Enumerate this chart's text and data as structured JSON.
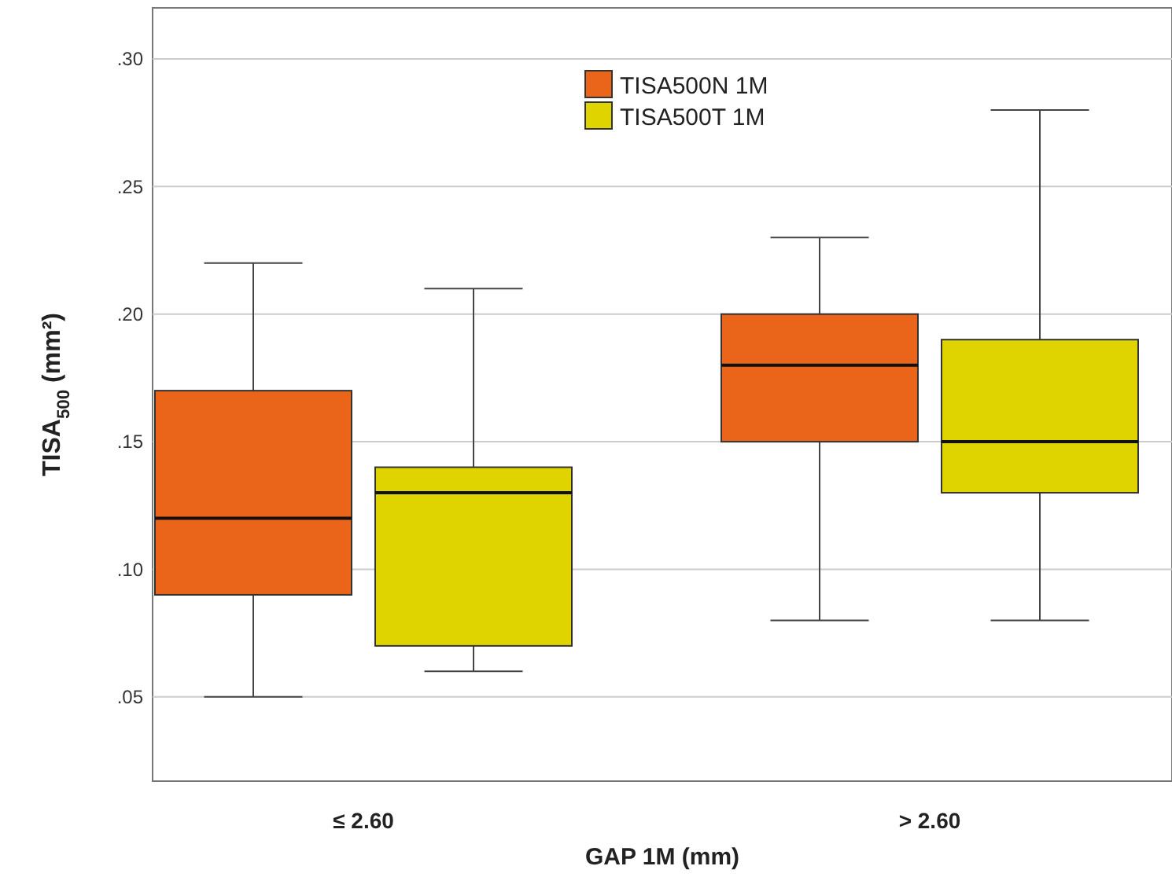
{
  "chart_data": {
    "type": "box",
    "xlabel": "GAP 1M (mm)",
    "ylabel": "TISA$_{500}$ (mm²)",
    "categories": [
      "≤ 2.60",
      "> 2.60"
    ],
    "ylim": [
      0.017,
      0.32
    ],
    "yticks": [
      {
        "value": 0.05,
        "label": ".05"
      },
      {
        "value": 0.1,
        "label": ".10"
      },
      {
        "value": 0.15,
        "label": ".15"
      },
      {
        "value": 0.2,
        "label": ".20"
      },
      {
        "value": 0.25,
        "label": ".25"
      },
      {
        "value": 0.3,
        "label": ".30"
      }
    ],
    "grid": "y",
    "legend": "top",
    "series": [
      {
        "name": "TISA500N 1M",
        "color": "#ea6519",
        "boxes": [
          {
            "low": 0.05,
            "q1": 0.09,
            "median": 0.12,
            "q3": 0.17,
            "high": 0.22
          },
          {
            "low": 0.08,
            "q1": 0.15,
            "median": 0.18,
            "q3": 0.2,
            "high": 0.23
          }
        ]
      },
      {
        "name": "TISA500T 1M",
        "color": "#e0d400",
        "boxes": [
          {
            "low": 0.06,
            "q1": 0.07,
            "median": 0.13,
            "q3": 0.14,
            "high": 0.21
          },
          {
            "low": 0.08,
            "q1": 0.13,
            "median": 0.15,
            "q3": 0.19,
            "high": 0.28
          }
        ]
      }
    ]
  }
}
